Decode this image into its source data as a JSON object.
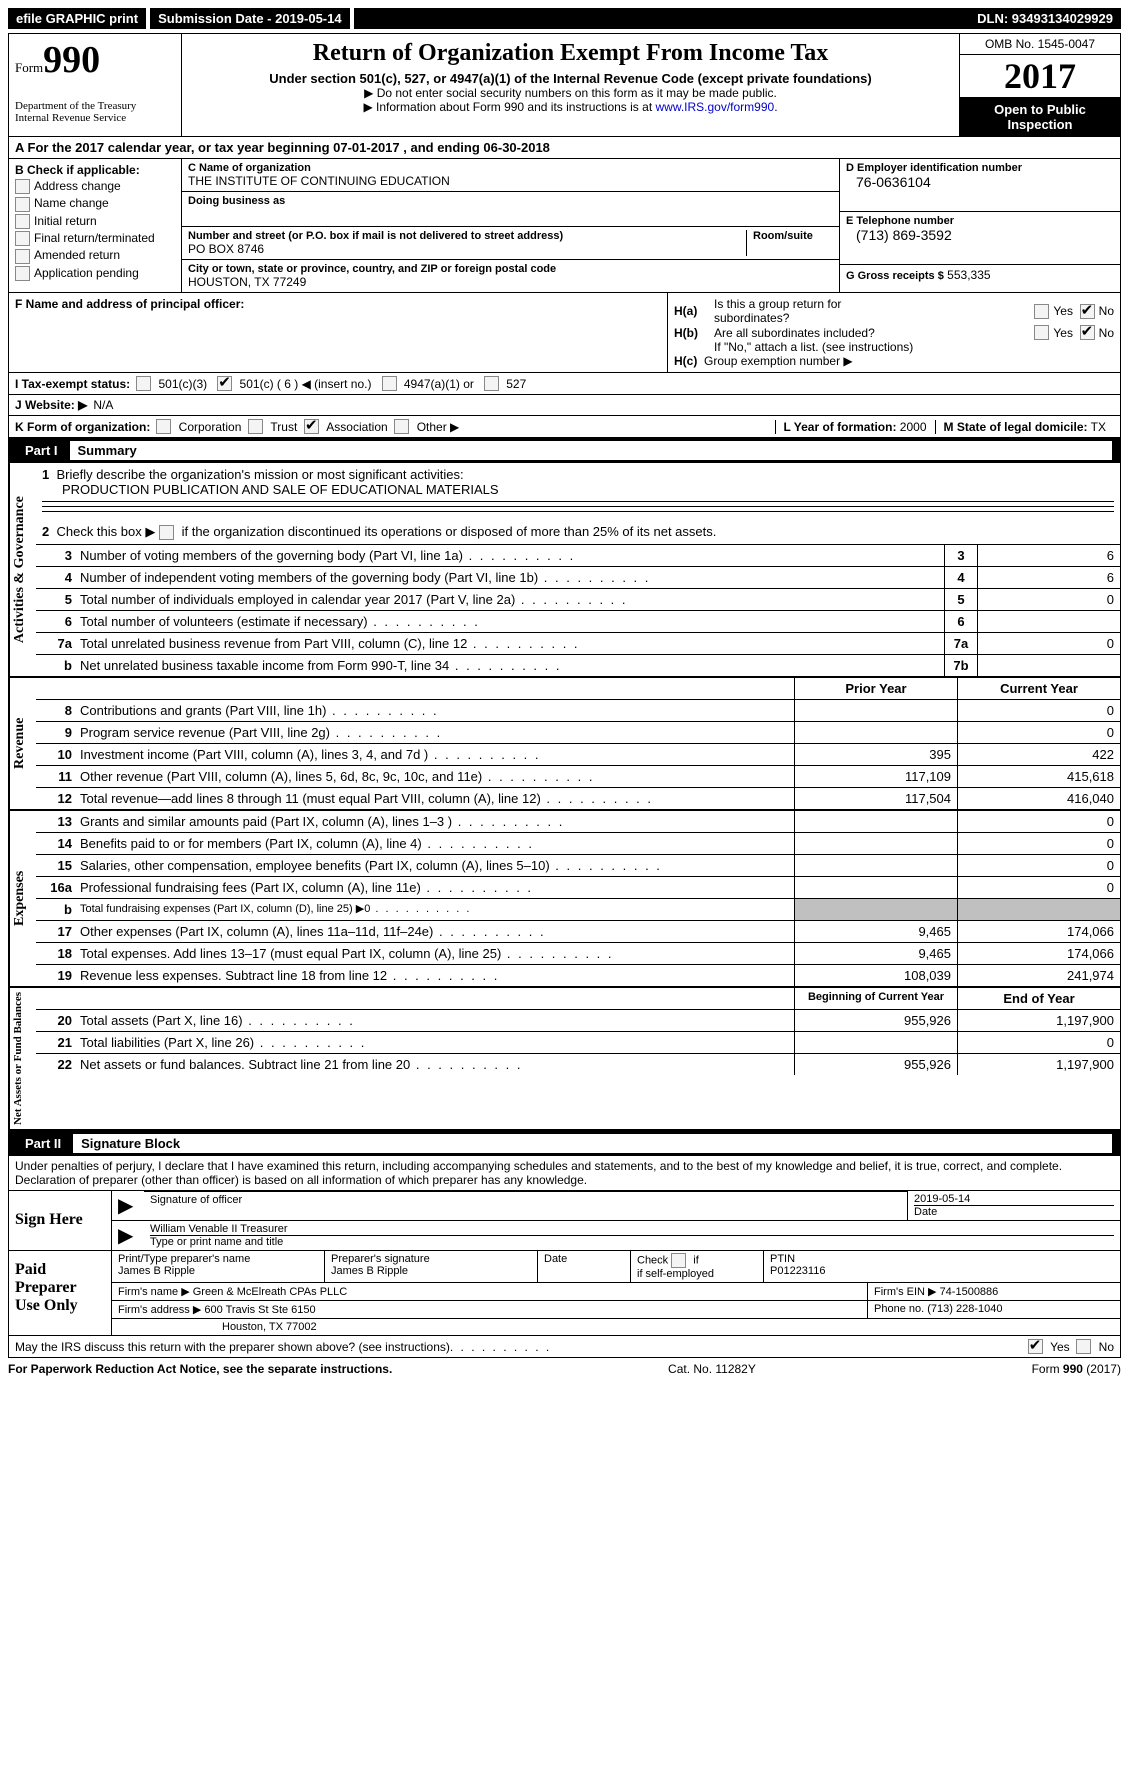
{
  "topbar": {
    "efile": "efile GRAPHIC print",
    "submission": "Submission Date - 2019-05-14",
    "dln": "DLN: 93493134029929"
  },
  "header": {
    "form_word": "Form",
    "form_no": "990",
    "dept1": "Department of the Treasury",
    "dept2": "Internal Revenue Service",
    "title": "Return of Organization Exempt From Income Tax",
    "subtitle": "Under section 501(c), 527, or 4947(a)(1) of the Internal Revenue Code (except private foundations)",
    "note1": "Do not enter social security numbers on this form as it may be made public.",
    "note2": "Information about Form 990 and its instructions is at ",
    "link": "www.IRS.gov/form990",
    "omb": "OMB No. 1545-0047",
    "year": "2017",
    "inspect1": "Open to Public",
    "inspect2": "Inspection"
  },
  "rowA": "A  For the 2017 calendar year, or tax year beginning 07-01-2017   , and ending 06-30-2018",
  "b": {
    "title": "B Check if applicable:",
    "items": [
      "Address change",
      "Name change",
      "Initial return",
      "Final return/terminated",
      "Amended return",
      "Application pending"
    ]
  },
  "c": {
    "name_label": "C Name of organization",
    "name": "THE INSTITUTE OF CONTINUING EDUCATION",
    "dba_label": "Doing business as",
    "street_label": "Number and street (or P.O. box if mail is not delivered to street address)",
    "room_label": "Room/suite",
    "street": "PO BOX 8746",
    "city_label": "City or town, state or province, country, and ZIP or foreign postal code",
    "city": "HOUSTON, TX  77249"
  },
  "d": {
    "ein_label": "D Employer identification number",
    "ein": "76-0636104",
    "phone_label": "E Telephone number",
    "phone": "(713) 869-3592",
    "gross_label": "G Gross receipts $",
    "gross": "553,335"
  },
  "f": {
    "label": "F Name and address of principal officer:"
  },
  "h": {
    "a": "Is this a group return for",
    "a2": "subordinates?",
    "b": "Are all subordinates included?",
    "note": "If \"No,\" attach a list. (see instructions)",
    "c": "Group exemption number ▶",
    "yes": "Yes",
    "no": "No"
  },
  "i": {
    "label": "I  Tax-exempt status:",
    "opt1": "501(c)(3)",
    "opt2": "501(c) ( 6 ) ◀ (insert no.)",
    "opt3": "4947(a)(1) or",
    "opt4": "527"
  },
  "j": {
    "label": "J  Website: ▶",
    "val": "N/A"
  },
  "k": {
    "label": "K Form of organization:",
    "opts": [
      "Corporation",
      "Trust",
      "Association",
      "Other ▶"
    ],
    "checked": 2,
    "l_label": "L Year of formation:",
    "l_val": "2000",
    "m_label": "M State of legal domicile:",
    "m_val": "TX"
  },
  "part1": {
    "title": "Part I",
    "name": "Summary",
    "tab_gov": "Activities & Governance",
    "tab_rev": "Revenue",
    "tab_exp": "Expenses",
    "tab_net": "Net Assets or Fund Balances",
    "line1": "Briefly describe the organization's mission or most significant activities:",
    "line1_val": "PRODUCTION PUBLICATION AND SALE OF EDUCATIONAL MATERIALS",
    "line2": "Check this box ▶",
    "line2b": "if the organization discontinued its operations or disposed of more than 25% of its net assets.",
    "lines_gov": [
      {
        "n": "3",
        "t": "Number of voting members of the governing body (Part VI, line 1a)",
        "v": "6"
      },
      {
        "n": "4",
        "t": "Number of independent voting members of the governing body (Part VI, line 1b)",
        "v": "6"
      },
      {
        "n": "5",
        "t": "Total number of individuals employed in calendar year 2017 (Part V, line 2a)",
        "v": "0"
      },
      {
        "n": "6",
        "t": "Total number of volunteers (estimate if necessary)",
        "v": ""
      },
      {
        "n": "7a",
        "t": "Total unrelated business revenue from Part VIII, column (C), line 12",
        "v": "0"
      },
      {
        "n": "b",
        "t": "Net unrelated business taxable income from Form 990-T, line 34",
        "bn": "7b",
        "v": ""
      }
    ],
    "col_prior": "Prior Year",
    "col_current": "Current Year",
    "lines_rev": [
      {
        "n": "8",
        "t": "Contributions and grants (Part VIII, line 1h)",
        "p": "",
        "c": "0"
      },
      {
        "n": "9",
        "t": "Program service revenue (Part VIII, line 2g)",
        "p": "",
        "c": "0"
      },
      {
        "n": "10",
        "t": "Investment income (Part VIII, column (A), lines 3, 4, and 7d )",
        "p": "395",
        "c": "422"
      },
      {
        "n": "11",
        "t": "Other revenue (Part VIII, column (A), lines 5, 6d, 8c, 9c, 10c, and 11e)",
        "p": "117,109",
        "c": "415,618"
      },
      {
        "n": "12",
        "t": "Total revenue—add lines 8 through 11 (must equal Part VIII, column (A), line 12)",
        "p": "117,504",
        "c": "416,040"
      }
    ],
    "lines_exp": [
      {
        "n": "13",
        "t": "Grants and similar amounts paid (Part IX, column (A), lines 1–3 )",
        "p": "",
        "c": "0"
      },
      {
        "n": "14",
        "t": "Benefits paid to or for members (Part IX, column (A), line 4)",
        "p": "",
        "c": "0"
      },
      {
        "n": "15",
        "t": "Salaries, other compensation, employee benefits (Part IX, column (A), lines 5–10)",
        "p": "",
        "c": "0"
      },
      {
        "n": "16a",
        "t": "Professional fundraising fees (Part IX, column (A), line 11e)",
        "p": "",
        "c": "0"
      },
      {
        "n": "b",
        "t": "Total fundraising expenses (Part IX, column (D), line 25) ▶0",
        "p": "GRAY",
        "c": "GRAY",
        "small": true
      },
      {
        "n": "17",
        "t": "Other expenses (Part IX, column (A), lines 11a–11d, 11f–24e)",
        "p": "9,465",
        "c": "174,066"
      },
      {
        "n": "18",
        "t": "Total expenses. Add lines 13–17 (must equal Part IX, column (A), line 25)",
        "p": "9,465",
        "c": "174,066"
      },
      {
        "n": "19",
        "t": "Revenue less expenses. Subtract line 18 from line 12",
        "p": "108,039",
        "c": "241,974"
      }
    ],
    "col_begin": "Beginning of Current Year",
    "col_end": "End of Year",
    "lines_net": [
      {
        "n": "20",
        "t": "Total assets (Part X, line 16)",
        "p": "955,926",
        "c": "1,197,900"
      },
      {
        "n": "21",
        "t": "Total liabilities (Part X, line 26)",
        "p": "",
        "c": "0"
      },
      {
        "n": "22",
        "t": "Net assets or fund balances. Subtract line 21 from line 20",
        "p": "955,926",
        "c": "1,197,900"
      }
    ]
  },
  "part2": {
    "title": "Part II",
    "name": "Signature Block",
    "declaration": "Under penalties of perjury, I declare that I have examined this return, including accompanying schedules and statements, and to the best of my knowledge and belief, it is true, correct, and complete. Declaration of preparer (other than officer) is based on all information of which preparer has any knowledge.",
    "sign_here": "Sign Here",
    "sig_label": "Signature of officer",
    "date_label": "Date",
    "date_val": "2019-05-14",
    "name_val": "William Venable II Treasurer",
    "name_label": "Type or print name and title",
    "paid": "Paid Preparer Use Only",
    "prep_name_label": "Print/Type preparer's name",
    "prep_name": "James B Ripple",
    "prep_sig_label": "Preparer's signature",
    "prep_sig": "James B Ripple",
    "check_self": "Check",
    "check_self2": "if self-employed",
    "ptin_label": "PTIN",
    "ptin": "P01223116",
    "firm_name_label": "Firm's name    ▶",
    "firm_name": "Green & McElreath CPAs PLLC",
    "firm_ein_label": "Firm's EIN ▶",
    "firm_ein": "74-1500886",
    "firm_addr_label": "Firm's address ▶",
    "firm_addr1": "600 Travis St Ste 6150",
    "firm_addr2": "Houston, TX  77002",
    "phone_label": "Phone no.",
    "phone": "(713) 228-1040",
    "discuss": "May the IRS discuss this return with the preparer shown above? (see instructions)",
    "yes": "Yes",
    "no": "No"
  },
  "footer": {
    "paperwork": "For Paperwork Reduction Act Notice, see the separate instructions.",
    "cat": "Cat. No. 11282Y",
    "form": "Form 990 (2017)"
  }
}
